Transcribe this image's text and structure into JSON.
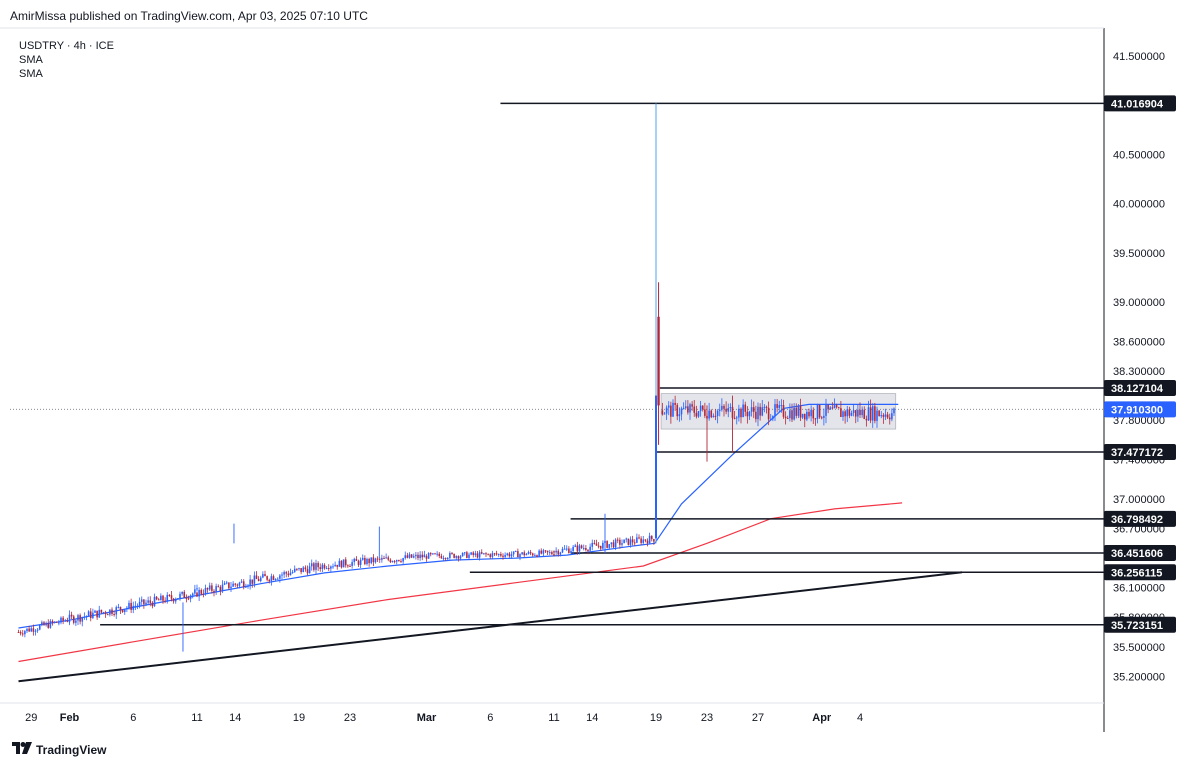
{
  "header": {
    "published": "AmirMissa published on TradingView.com, Apr 03, 2025 07:10 UTC"
  },
  "legend": {
    "symbol": "USDTRY · 4h · ICE",
    "indicators": [
      "SMA",
      "SMA"
    ]
  },
  "footer": {
    "brand": "TradingView"
  },
  "colors": {
    "up": "#2962ff",
    "down": "#b2283a",
    "sma_fast": "#2962ff",
    "sma_slow": "#f23645",
    "level": "#131722",
    "grid": "#ffffff"
  },
  "chart_data": {
    "type": "candlestick",
    "symbol": "USDTRY",
    "timeframe": "4h",
    "price_ticks": [
      "41.500000",
      "40.500000",
      "40.000000",
      "39.500000",
      "39.000000",
      "38.600000",
      "38.300000",
      "37.800000",
      "37.400000",
      "37.000000",
      "36.700000",
      "36.100000",
      "35.800000",
      "35.500000",
      "35.200000"
    ],
    "price_tick_values": [
      41.5,
      40.5,
      40.0,
      39.5,
      39.0,
      38.6,
      38.3,
      37.8,
      37.4,
      37.0,
      36.7,
      36.1,
      35.8,
      35.5,
      35.2
    ],
    "time_ticks": [
      "29",
      "Feb",
      "6",
      "11",
      "14",
      "19",
      "23",
      "Mar",
      "6",
      "11",
      "14",
      "19",
      "23",
      "27",
      "Apr",
      "4"
    ],
    "time_tick_days": [
      -3,
      0,
      5,
      10,
      13,
      18,
      22,
      28,
      33,
      38,
      41,
      46,
      50,
      54,
      59,
      62
    ],
    "last_price": "37.910300",
    "last_price_value": 37.9103,
    "levels": [
      {
        "label": "41.016904",
        "value": 41.016904,
        "from_day": 33.8
      },
      {
        "label": "38.127104",
        "value": 38.127104,
        "from_day": 46.3
      },
      {
        "label": "37.477172",
        "value": 37.477172,
        "from_day": 46.0
      },
      {
        "label": "36.798492",
        "value": 36.798492,
        "from_day": 39.3
      },
      {
        "label": "36.451606",
        "value": 36.451606,
        "from_day": 39.3
      },
      {
        "label": "36.256115",
        "value": 36.256115,
        "from_day": 31.4
      },
      {
        "label": "35.723151",
        "value": 35.723151,
        "from_day": 2.4
      }
    ],
    "trendline": {
      "from": {
        "day": -4.0,
        "value": 35.15
      },
      "to": {
        "day": 70.0,
        "value": 36.256
      }
    },
    "range_box": {
      "from_day": 46.4,
      "to_day": 64.8,
      "top": 38.07,
      "bottom": 37.71
    },
    "sma_fast": [
      [
        -4,
        35.69
      ],
      [
        0,
        35.77
      ],
      [
        5,
        35.9
      ],
      [
        10,
        36.02
      ],
      [
        15,
        36.14
      ],
      [
        20,
        36.25
      ],
      [
        25,
        36.32
      ],
      [
        30,
        36.38
      ],
      [
        35,
        36.4
      ],
      [
        39,
        36.43
      ],
      [
        44,
        36.52
      ],
      [
        45.9,
        36.55
      ],
      [
        48,
        36.95
      ],
      [
        52,
        37.45
      ],
      [
        56,
        37.92
      ],
      [
        58,
        37.96
      ],
      [
        65,
        37.96
      ]
    ],
    "sma_slow": [
      [
        -4,
        35.35
      ],
      [
        5,
        35.55
      ],
      [
        15,
        35.77
      ],
      [
        25,
        35.98
      ],
      [
        35,
        36.15
      ],
      [
        45,
        36.32
      ],
      [
        50,
        36.55
      ],
      [
        55,
        36.8
      ],
      [
        60,
        36.9
      ],
      [
        65.3,
        36.96
      ]
    ],
    "spike": {
      "day": 46.0,
      "low": 36.55,
      "high": 41.016904
    },
    "candle_regimes": [
      {
        "from_day": -4,
        "to_day": 0,
        "start": 35.65,
        "end": 35.78,
        "amp": 0.05
      },
      {
        "from_day": 0,
        "to_day": 10,
        "start": 35.78,
        "end": 36.05,
        "amp": 0.06
      },
      {
        "from_day": 10,
        "to_day": 20,
        "start": 36.05,
        "end": 36.33,
        "amp": 0.06
      },
      {
        "from_day": 20,
        "to_day": 28,
        "start": 36.33,
        "end": 36.42,
        "amp": 0.05
      },
      {
        "from_day": 28,
        "to_day": 38,
        "start": 36.42,
        "end": 36.45,
        "amp": 0.04
      },
      {
        "from_day": 38,
        "to_day": 45.9,
        "start": 36.47,
        "end": 36.6,
        "amp": 0.05
      },
      {
        "from_day": 46.5,
        "to_day": 64.8,
        "start": 37.9,
        "end": 37.87,
        "amp": 0.1
      }
    ]
  }
}
